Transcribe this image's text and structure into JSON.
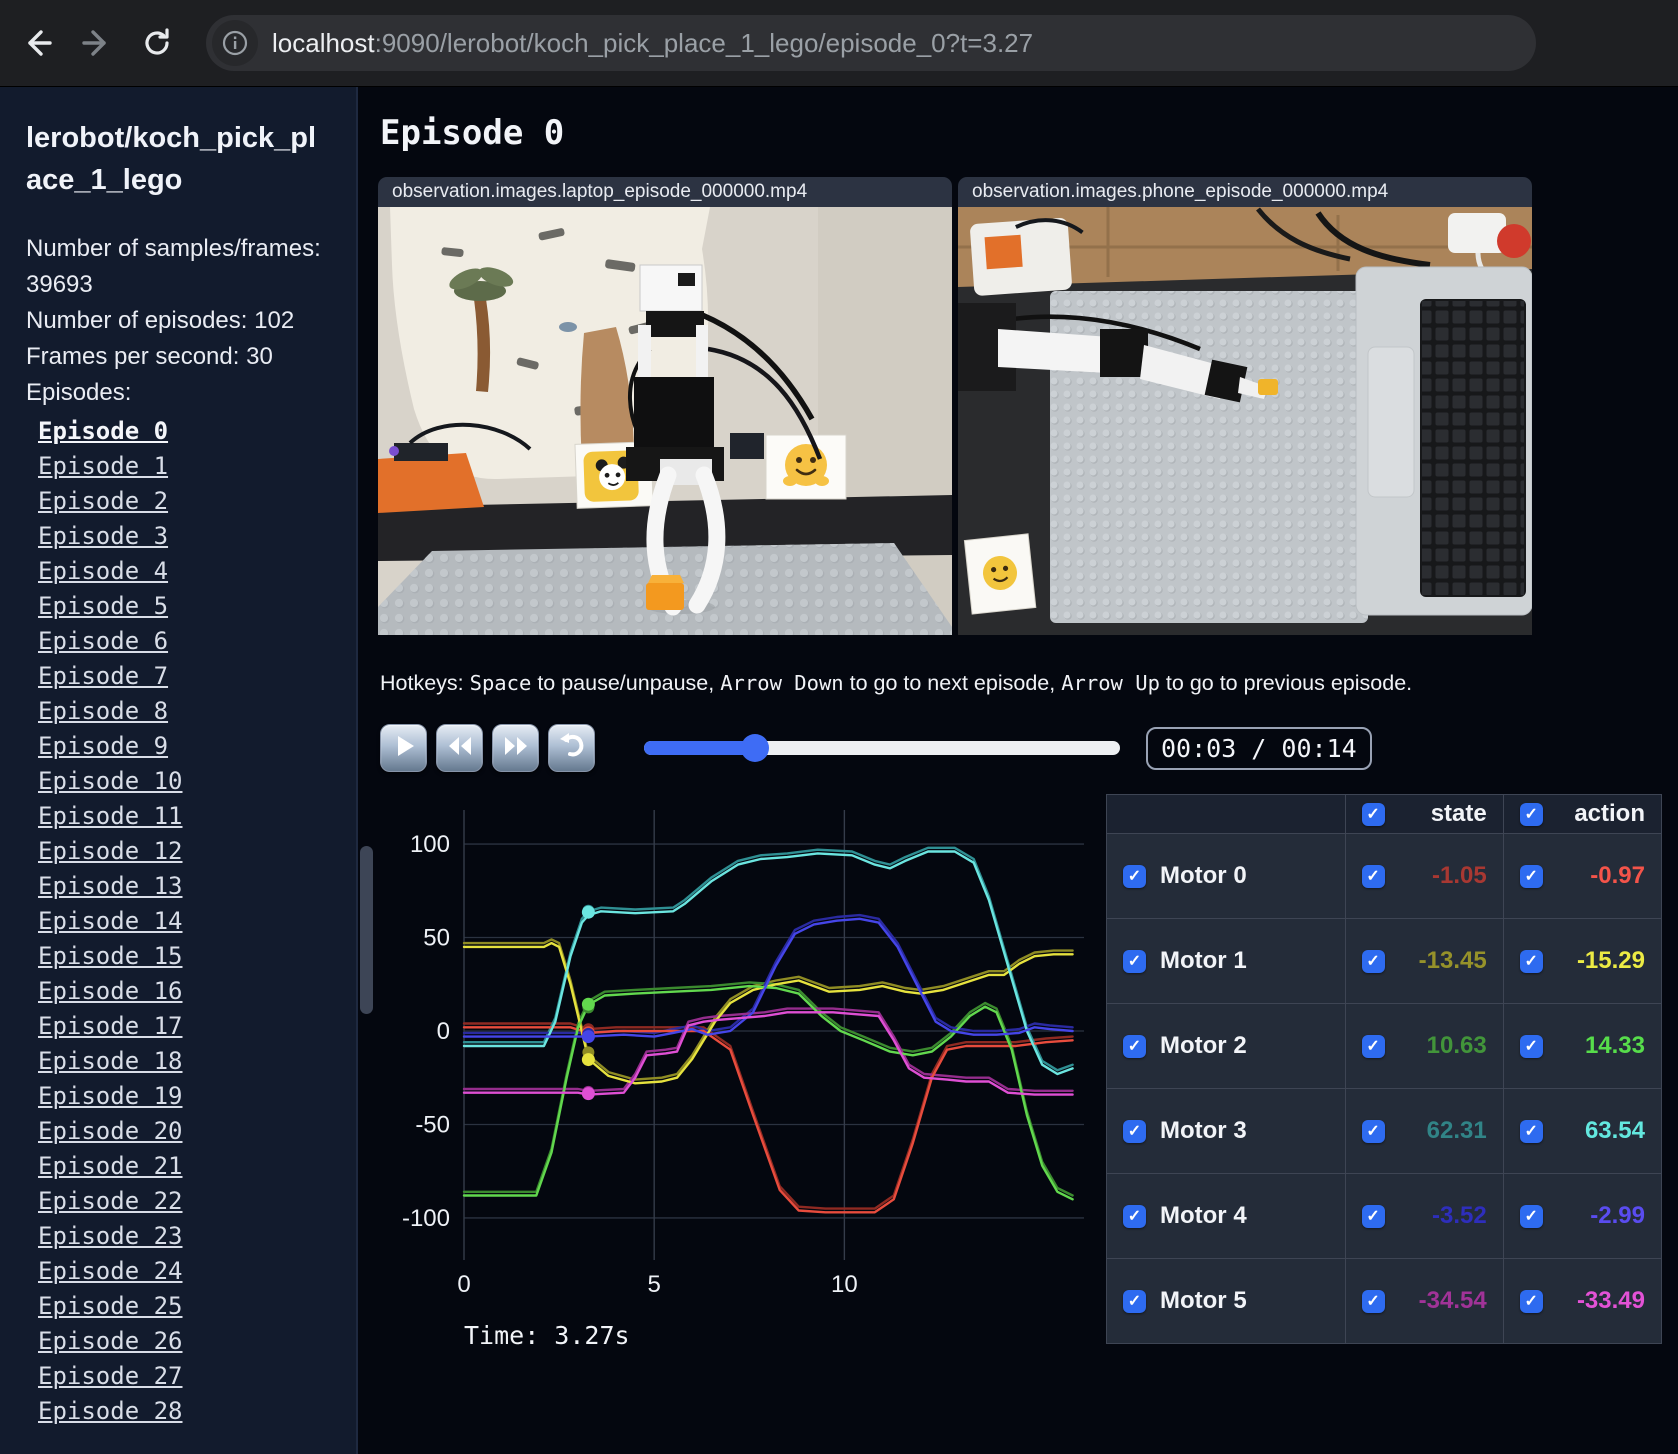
{
  "browser": {
    "url_host": "localhost",
    "url_rest": ":9090/lerobot/koch_pick_place_1_lego/episode_0?t=3.27"
  },
  "sidebar": {
    "title": "lerobot/koch_pick_place_1_lego",
    "stats": [
      "Number of samples/frames: 39693",
      "Number of episodes: 102",
      "Frames per second: 30"
    ],
    "episodes_heading": "Episodes:",
    "active_episode": "Episode 0",
    "episodes": [
      "Episode 0",
      "Episode 1",
      "Episode 2",
      "Episode 3",
      "Episode 4",
      "Episode 5",
      "Episode 6",
      "Episode 7",
      "Episode 8",
      "Episode 9",
      "Episode 10",
      "Episode 11",
      "Episode 12",
      "Episode 13",
      "Episode 14",
      "Episode 15",
      "Episode 16",
      "Episode 17",
      "Episode 18",
      "Episode 19",
      "Episode 20",
      "Episode 21",
      "Episode 22",
      "Episode 23",
      "Episode 24",
      "Episode 25",
      "Episode 26",
      "Episode 27",
      "Episode 28"
    ]
  },
  "main": {
    "title": "Episode 0",
    "videos": [
      {
        "label": "observation.images.laptop_episode_000000.mp4"
      },
      {
        "label": "observation.images.phone_episode_000000.mp4"
      }
    ],
    "hotkeys": {
      "segments": [
        {
          "t": "Hotkeys: "
        },
        {
          "t": "Space",
          "mono": true
        },
        {
          "t": " to pause/unpause, "
        },
        {
          "t": "Arrow Down",
          "mono": true
        },
        {
          "t": " to go to next episode, "
        },
        {
          "t": "Arrow Up",
          "mono": true
        },
        {
          "t": " to go to previous episode."
        }
      ]
    },
    "controls": {
      "time_display": "00:03 / 00:14",
      "progress_pct": 23.4
    }
  },
  "chart_data": {
    "type": "line",
    "xlabel": "",
    "ylabel": "",
    "x_ticks": [
      0,
      5,
      10
    ],
    "y_ticks": [
      100,
      50,
      0,
      -50,
      -100
    ],
    "xlim": [
      0,
      16.3
    ],
    "ylim": [
      -115,
      115
    ],
    "grid": true,
    "current_time": 3.27,
    "time_label": "Time: 3.27s",
    "series": [
      {
        "name": "Motor 0",
        "color": "#e84c3d",
        "dim": "#8f2a22",
        "dot_state": -1.05,
        "dot_action": -0.97,
        "points": [
          [
            0,
            2
          ],
          [
            2.8,
            2
          ],
          [
            3.27,
            -1
          ],
          [
            4,
            0
          ],
          [
            5,
            0
          ],
          [
            6.3,
            0
          ],
          [
            7,
            -10
          ],
          [
            7.6,
            -45
          ],
          [
            8.3,
            -85
          ],
          [
            8.8,
            -96
          ],
          [
            9.5,
            -97
          ],
          [
            10.8,
            -97
          ],
          [
            11.3,
            -90
          ],
          [
            11.8,
            -60
          ],
          [
            12.3,
            -25
          ],
          [
            12.7,
            -10
          ],
          [
            13.2,
            -8
          ],
          [
            14.5,
            -8
          ],
          [
            15.3,
            -6
          ],
          [
            16,
            -5
          ]
        ]
      },
      {
        "name": "Motor 1",
        "color": "#e6e23e",
        "dim": "#8f8c24",
        "dot_state": -13.45,
        "dot_action": -15.29,
        "points": [
          [
            0,
            45
          ],
          [
            2.1,
            45
          ],
          [
            2.3,
            47
          ],
          [
            2.5,
            45
          ],
          [
            2.8,
            25
          ],
          [
            3.27,
            -15
          ],
          [
            3.8,
            -24
          ],
          [
            4.5,
            -28
          ],
          [
            5.2,
            -27
          ],
          [
            5.6,
            -25
          ],
          [
            6,
            -15
          ],
          [
            6.6,
            5
          ],
          [
            7,
            15
          ],
          [
            7.6,
            22
          ],
          [
            8.2,
            25
          ],
          [
            8.8,
            27
          ],
          [
            9.2,
            24
          ],
          [
            9.6,
            21
          ],
          [
            10.4,
            22
          ],
          [
            11,
            24
          ],
          [
            11.6,
            21
          ],
          [
            12,
            20
          ],
          [
            12.6,
            22
          ],
          [
            13.2,
            26
          ],
          [
            13.8,
            30
          ],
          [
            14.2,
            30
          ],
          [
            14.6,
            36
          ],
          [
            15,
            40
          ],
          [
            15.5,
            41
          ],
          [
            16,
            41
          ]
        ]
      },
      {
        "name": "Motor 2",
        "color": "#62d84e",
        "dim": "#3b8a2f",
        "dot_state": 10.63,
        "dot_action": 14.33,
        "points": [
          [
            0,
            -88
          ],
          [
            1.9,
            -88
          ],
          [
            2.3,
            -65
          ],
          [
            2.7,
            -25
          ],
          [
            3,
            2
          ],
          [
            3.27,
            14
          ],
          [
            3.7,
            19
          ],
          [
            4.5,
            20
          ],
          [
            5.5,
            21
          ],
          [
            6.5,
            22
          ],
          [
            7.5,
            24
          ],
          [
            8.2,
            23
          ],
          [
            8.8,
            20
          ],
          [
            9.4,
            8
          ],
          [
            9.9,
            0
          ],
          [
            10.5,
            -5
          ],
          [
            11.2,
            -11
          ],
          [
            11.8,
            -13
          ],
          [
            12.3,
            -11
          ],
          [
            12.8,
            -3
          ],
          [
            13.3,
            8
          ],
          [
            13.7,
            13
          ],
          [
            14,
            10
          ],
          [
            14.4,
            -10
          ],
          [
            14.8,
            -45
          ],
          [
            15.2,
            -72
          ],
          [
            15.6,
            -86
          ],
          [
            16,
            -90
          ]
        ]
      },
      {
        "name": "Motor 3",
        "color": "#6be5e0",
        "dim": "#2f8f93",
        "dot_state": 62.31,
        "dot_action": 63.54,
        "points": [
          [
            0,
            -8
          ],
          [
            2.1,
            -8
          ],
          [
            2.4,
            5
          ],
          [
            2.8,
            40
          ],
          [
            3.1,
            58
          ],
          [
            3.27,
            62
          ],
          [
            3.6,
            64
          ],
          [
            4.5,
            63
          ],
          [
            5.5,
            64
          ],
          [
            5.8,
            68
          ],
          [
            6.5,
            80
          ],
          [
            7.2,
            89
          ],
          [
            7.8,
            92
          ],
          [
            8.5,
            93
          ],
          [
            9.3,
            95
          ],
          [
            10.2,
            94
          ],
          [
            10.8,
            89
          ],
          [
            11.2,
            87
          ],
          [
            11.6,
            91
          ],
          [
            12.2,
            96
          ],
          [
            12.9,
            96
          ],
          [
            13.4,
            90
          ],
          [
            13.8,
            70
          ],
          [
            14.3,
            35
          ],
          [
            14.8,
            0
          ],
          [
            15.2,
            -18
          ],
          [
            15.6,
            -23
          ],
          [
            16,
            -20
          ]
        ]
      },
      {
        "name": "Motor 4",
        "color": "#4545e8",
        "dim": "#2a2aa0",
        "dot_state": -3.52,
        "dot_action": -2.99,
        "points": [
          [
            0,
            -3
          ],
          [
            2.5,
            -3
          ],
          [
            3.27,
            -3
          ],
          [
            4.2,
            -2
          ],
          [
            5,
            -3
          ],
          [
            5.5,
            -1
          ],
          [
            6,
            1
          ],
          [
            6.4,
            -2
          ],
          [
            7,
            0
          ],
          [
            7.6,
            10
          ],
          [
            8.2,
            35
          ],
          [
            8.7,
            52
          ],
          [
            9.2,
            57
          ],
          [
            9.8,
            59
          ],
          [
            10.4,
            60
          ],
          [
            10.9,
            58
          ],
          [
            11.4,
            45
          ],
          [
            11.9,
            25
          ],
          [
            12.4,
            5
          ],
          [
            12.8,
            0
          ],
          [
            13.4,
            -2
          ],
          [
            14,
            -2
          ],
          [
            14.6,
            -1
          ],
          [
            15,
            2
          ],
          [
            15.4,
            1
          ],
          [
            16,
            0
          ]
        ]
      },
      {
        "name": "Motor 5",
        "color": "#df4fd4",
        "dim": "#952d8d",
        "dot_state": -34.54,
        "dot_action": -33.49,
        "points": [
          [
            0,
            -33
          ],
          [
            3,
            -33
          ],
          [
            3.27,
            -34
          ],
          [
            4.2,
            -33
          ],
          [
            4.5,
            -25
          ],
          [
            4.8,
            -13
          ],
          [
            5.3,
            -12
          ],
          [
            5.6,
            -11
          ],
          [
            5.9,
            3
          ],
          [
            6.3,
            5
          ],
          [
            6.7,
            6
          ],
          [
            7.3,
            7
          ],
          [
            7.9,
            8
          ],
          [
            8.5,
            10
          ],
          [
            9.1,
            10
          ],
          [
            9.7,
            10
          ],
          [
            10.3,
            9
          ],
          [
            10.9,
            8
          ],
          [
            11.3,
            -5
          ],
          [
            11.7,
            -20
          ],
          [
            12.1,
            -25
          ],
          [
            12.7,
            -26
          ],
          [
            13.2,
            -27
          ],
          [
            13.8,
            -27
          ],
          [
            14.3,
            -33
          ],
          [
            15,
            -34
          ],
          [
            16,
            -34
          ]
        ]
      }
    ]
  },
  "table": {
    "headers": {
      "state": "state",
      "action": "action"
    },
    "rows": [
      {
        "name": "Motor 0",
        "state": "-1.05",
        "action": "-0.97",
        "state_color": "#a83832",
        "action_color": "#f4544a"
      },
      {
        "name": "Motor 1",
        "state": "-13.45",
        "action": "-15.29",
        "state_color": "#96922a",
        "action_color": "#eceb44"
      },
      {
        "name": "Motor 2",
        "state": "10.63",
        "action": "14.33",
        "state_color": "#42953a",
        "action_color": "#57dd4b"
      },
      {
        "name": "Motor 3",
        "state": "62.31",
        "action": "63.54",
        "state_color": "#318487",
        "action_color": "#63e8df"
      },
      {
        "name": "Motor 4",
        "state": "-3.52",
        "action": "-2.99",
        "state_color": "#2e2ebc",
        "action_color": "#5a4cf0"
      },
      {
        "name": "Motor 5",
        "state": "-34.54",
        "action": "-33.49",
        "state_color": "#a13398",
        "action_color": "#e352d6"
      }
    ]
  }
}
